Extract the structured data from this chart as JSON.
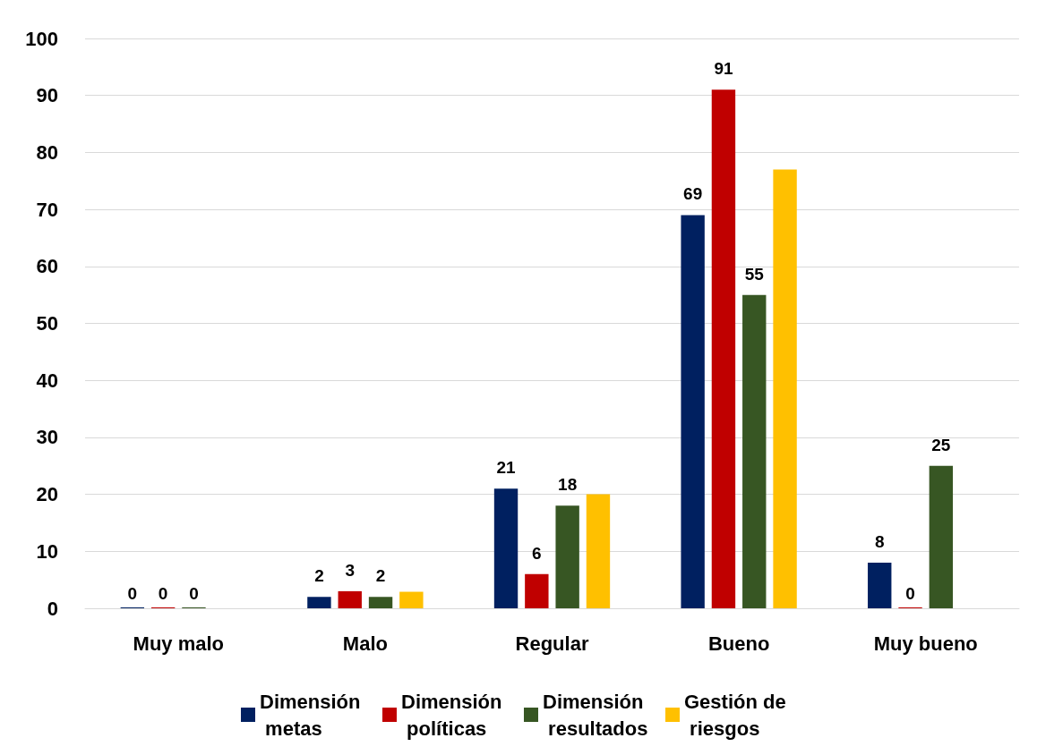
{
  "chart_data": {
    "type": "bar",
    "categories": [
      "Muy malo",
      "Malo",
      "Regular",
      "Bueno",
      "Muy bueno"
    ],
    "series": [
      {
        "name": "Dimensión metas",
        "color": "#002060",
        "values": [
          0,
          2,
          21,
          69,
          8
        ],
        "value_labels": [
          "0",
          "2",
          "21",
          "69",
          "8"
        ]
      },
      {
        "name": "Dimensión políticas",
        "color": "#c00000",
        "values": [
          0,
          3,
          6,
          91,
          0
        ],
        "value_labels": [
          "0",
          "3",
          "6",
          "91",
          "0"
        ]
      },
      {
        "name": "Dimensión resultados",
        "color": "#375623",
        "values": [
          0,
          2,
          18,
          55,
          25
        ],
        "value_labels": [
          "0",
          "2",
          "18",
          "55",
          "25"
        ]
      },
      {
        "name": "Gestión de riesgos",
        "color": "#ffc000",
        "values": [
          null,
          2.9,
          20,
          77,
          null
        ]
      }
    ],
    "ylim": [
      0,
      100
    ],
    "yticks": [
      0,
      10,
      20,
      30,
      40,
      50,
      60,
      70,
      80,
      90,
      100
    ],
    "grid": "y",
    "legend": "bottom"
  }
}
